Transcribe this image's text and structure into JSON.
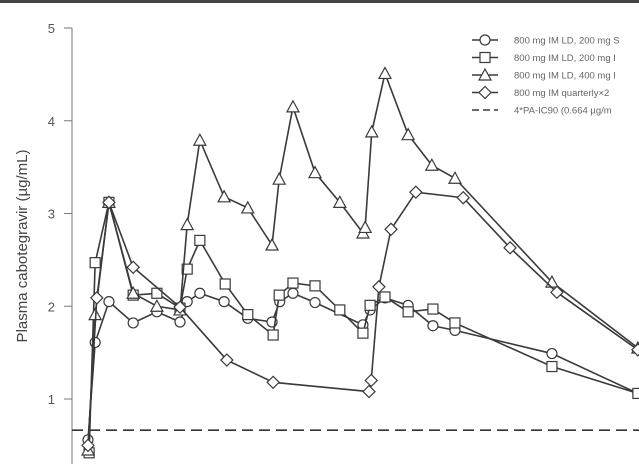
{
  "chart_data": {
    "type": "line",
    "title": "",
    "xlabel": "",
    "ylabel": "Plasma cabotegravir (µg/mL)",
    "xlim": [
      -3,
      100
    ],
    "ylim": [
      0.4,
      5.05
    ],
    "yticks": [
      1,
      2,
      3,
      4,
      5
    ],
    "ytick_labels": [
      "1",
      "2",
      "3",
      "4",
      "5"
    ],
    "grid": false,
    "legend_position": "top-right",
    "line_color": "#3a3a3a",
    "series": [
      {
        "name": "800 mg IM LD, 200 mg S",
        "marker": "circle",
        "x": [
          0,
          1.3,
          3.8,
          8.2,
          12.5,
          16.7,
          18,
          20.3,
          24.7,
          29,
          33.4,
          34.8,
          37.2,
          41.2,
          49.9,
          51.2,
          53.9,
          58.1,
          62.6,
          66.6,
          84.2,
          99.8
        ],
        "y": [
          0.56,
          1.61,
          2.05,
          1.82,
          1.94,
          1.83,
          2.05,
          2.14,
          2.05,
          1.87,
          1.83,
          2.05,
          2.14,
          2.04,
          1.8,
          1.96,
          2.09,
          2.01,
          1.79,
          1.74,
          1.49,
          1.06
        ]
      },
      {
        "name": "800 mg IM LD, 200 mg I",
        "marker": "square",
        "x": [
          0.2,
          1.3,
          3.8,
          8.2,
          12.5,
          16.7,
          18,
          20.3,
          24.9,
          29,
          33.6,
          34.7,
          37.2,
          41.2,
          45.7,
          49.9,
          51.2,
          53.9,
          58.1,
          62.6,
          66.6,
          84.2,
          99.8
        ],
        "y": [
          0.42,
          2.47,
          3.12,
          2.12,
          2.14,
          1.98,
          2.4,
          2.71,
          2.24,
          1.91,
          1.69,
          2.12,
          2.25,
          2.22,
          1.96,
          1.71,
          2.01,
          2.1,
          1.94,
          1.97,
          1.82,
          1.35,
          1.06
        ]
      },
      {
        "name": "800 mg IM LD, 400 mg I",
        "marker": "triangle",
        "x": [
          0,
          1.3,
          3.8,
          8.2,
          12.5,
          16.7,
          18,
          20.3,
          24.7,
          29,
          33.4,
          34.7,
          37.2,
          41.2,
          45.7,
          49.9,
          50.3,
          51.5,
          53.9,
          58.1,
          62.4,
          66.6,
          84.2,
          99.8
        ],
        "y": [
          0.45,
          1.91,
          3.12,
          2.14,
          2.0,
          1.96,
          2.88,
          3.79,
          3.18,
          3.06,
          2.66,
          3.37,
          4.15,
          3.44,
          3.12,
          2.79,
          2.85,
          3.88,
          4.51,
          3.85,
          3.52,
          3.38,
          2.26,
          1.55
        ]
      },
      {
        "name": "800 mg IM quarterly×2",
        "marker": "diamond",
        "x": [
          0,
          1.6,
          3.8,
          8.2,
          16.7,
          25.2,
          33.6,
          51,
          51.4,
          52.8,
          55,
          59.5,
          68.1,
          76.6,
          85.1,
          99.8
        ],
        "y": [
          0.5,
          2.09,
          3.12,
          2.42,
          1.99,
          1.42,
          1.18,
          1.08,
          1.2,
          2.21,
          2.83,
          3.23,
          3.17,
          2.63,
          2.15,
          1.53
        ]
      }
    ],
    "reference_line": {
      "name": "4*PA-IC90 (0.664 µg/m",
      "y": 0.664,
      "style": "dashed"
    }
  }
}
